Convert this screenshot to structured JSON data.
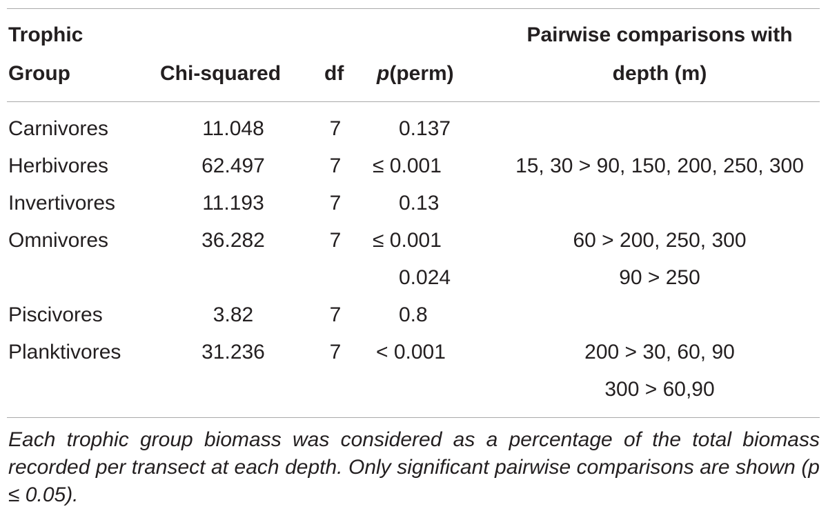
{
  "header": {
    "group_line1": "Trophic",
    "group_line2": "Group",
    "chi": "Chi-squared",
    "df": "df",
    "p_italic": "p",
    "p_rest": "(perm)",
    "pair_line1": "Pairwise comparisons with",
    "pair_line2": "depth (m)"
  },
  "rows": [
    {
      "group": "Carnivores",
      "chi": "11.048",
      "df": "7",
      "p": "0.137",
      "pair": ""
    },
    {
      "group": "Herbivores",
      "chi": "62.497",
      "df": "7",
      "p": "≤ 0.001",
      "pair": "15, 30 > 90, 150, 200, 250, 300"
    },
    {
      "group": "Invertivores",
      "chi": "11.193",
      "df": "7",
      "p": "0.13",
      "pair": ""
    },
    {
      "group": "Omnivores",
      "chi": "36.282",
      "df": "7",
      "p": "≤ 0.001",
      "pair": "60 > 200, 250, 300"
    },
    {
      "group": "",
      "chi": "",
      "df": "",
      "p": "0.024",
      "pair": "90 > 250"
    },
    {
      "group": "Piscivores",
      "chi": "3.82",
      "df": "7",
      "p": "0.8",
      "pair": ""
    },
    {
      "group": "Planktivores",
      "chi": "31.236",
      "df": "7",
      "p": "< 0.001",
      "pair": "200 > 30, 60, 90"
    },
    {
      "group": "",
      "chi": "",
      "df": "",
      "p": "",
      "pair": "300 > 60,90"
    }
  ],
  "footnote": "Each trophic group biomass was considered as a percentage of the total biomass recorded per transect at each depth. Only significant pairwise comparisons are shown (p ≤ 0.05)."
}
